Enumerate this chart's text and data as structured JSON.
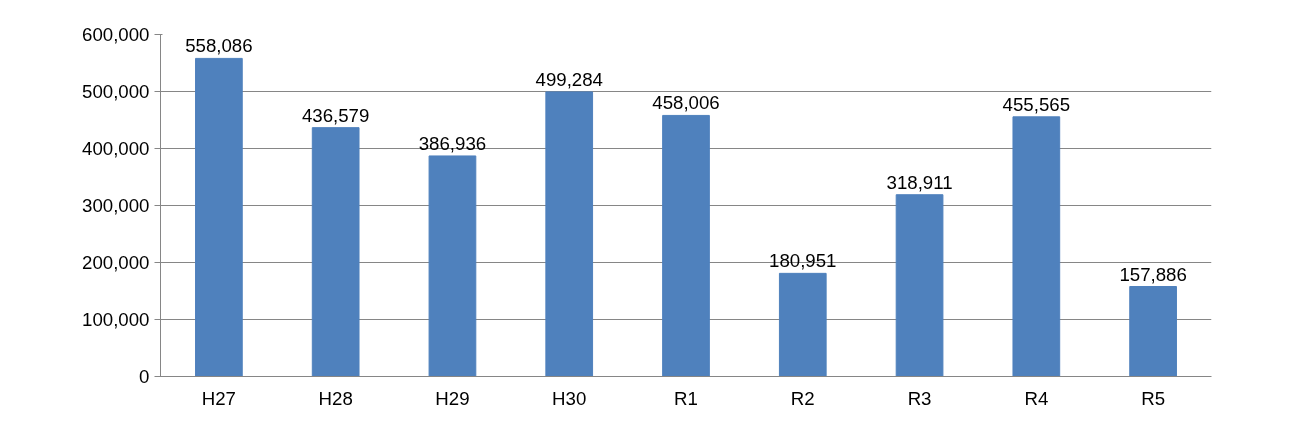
{
  "chart_data": {
    "type": "bar",
    "categories": [
      "H27",
      "H28",
      "H29",
      "H30",
      "R1",
      "R2",
      "R3",
      "R4",
      "R5"
    ],
    "values": [
      558086,
      436579,
      386936,
      499284,
      458006,
      180951,
      318911,
      455565,
      157886
    ],
    "color": "#4f81bd",
    "ylim": [
      0,
      600000
    ],
    "yticks": [
      0,
      {
        "value": 100000,
        "label": "100,000"
      },
      {
        "value": 200000,
        "label": "200,000"
      },
      {
        "value": 300000,
        "label": "300,000"
      },
      {
        "value": 400000,
        "label": "400,000"
      },
      {
        "value": 500000,
        "label": "500,000"
      },
      {
        "value": 600000,
        "label": "600,000"
      }
    ],
    "grid": "y",
    "value_labels": [
      "558,086",
      "436,579",
      "386,936",
      "499,284",
      "458,006",
      "180,951",
      "318,911",
      "455,565",
      "157,886"
    ]
  }
}
